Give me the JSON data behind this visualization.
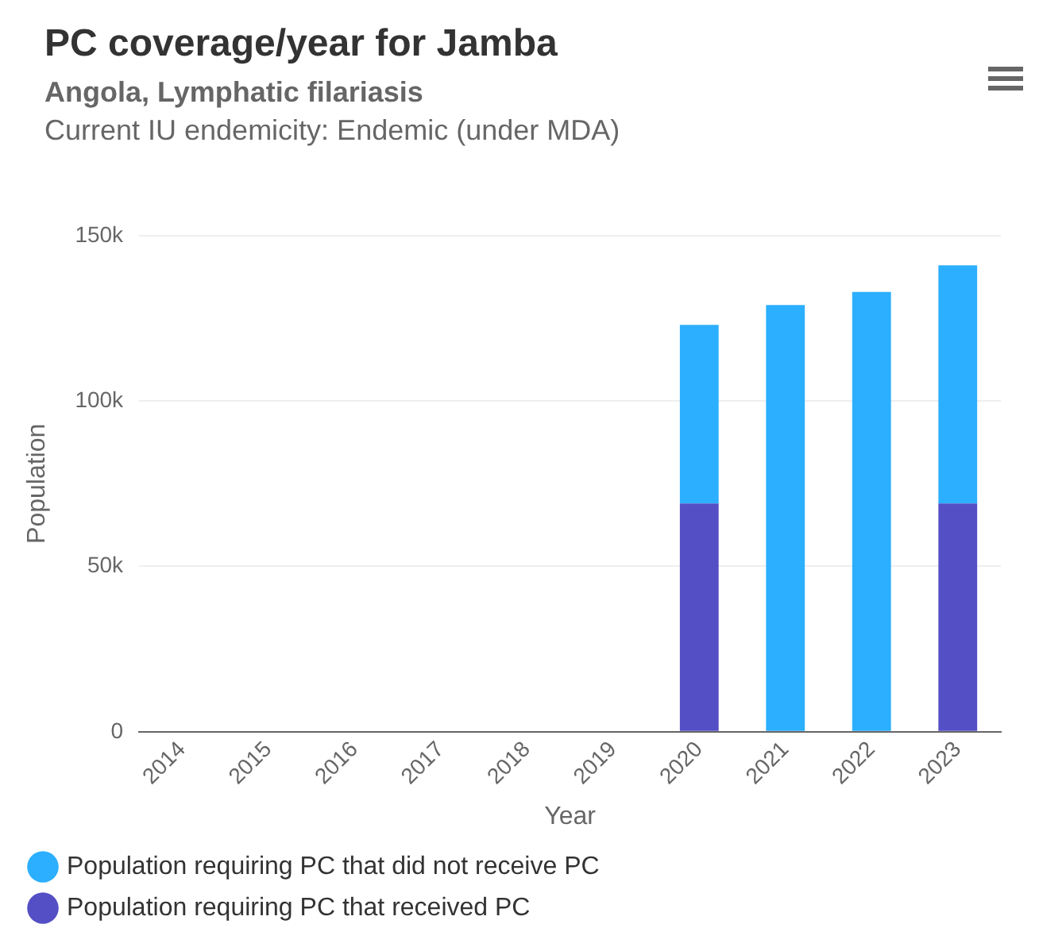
{
  "chart_data": {
    "type": "bar",
    "title": "PC coverage/year for Jamba",
    "subtitle": "Angola, Lymphatic filariasis",
    "annotations": [
      "Current IU endemicity: Endemic (under MDA)"
    ],
    "xlabel": "Year",
    "ylabel": "Population",
    "categories": [
      "2014",
      "2015",
      "2016",
      "2017",
      "2018",
      "2019",
      "2020",
      "2021",
      "2022",
      "2023"
    ],
    "stacked": true,
    "series": [
      {
        "name": "Population requiring PC that received PC",
        "color": "#544fc5",
        "values": [
          null,
          null,
          null,
          null,
          null,
          null,
          69000,
          null,
          null,
          69000
        ]
      },
      {
        "name": "Population requiring PC that did not receive PC",
        "color": "#2caffe",
        "values": [
          null,
          null,
          null,
          null,
          null,
          null,
          54000,
          129000,
          133000,
          72000
        ]
      }
    ],
    "ylim": [
      0,
      150000
    ],
    "yticks": [
      0,
      {
        "value": 50000,
        "label": "50k"
      },
      {
        "value": 100000,
        "label": "100k"
      },
      {
        "value": 150000,
        "label": "150k"
      }
    ],
    "grid": "y",
    "legend": "bottom"
  }
}
